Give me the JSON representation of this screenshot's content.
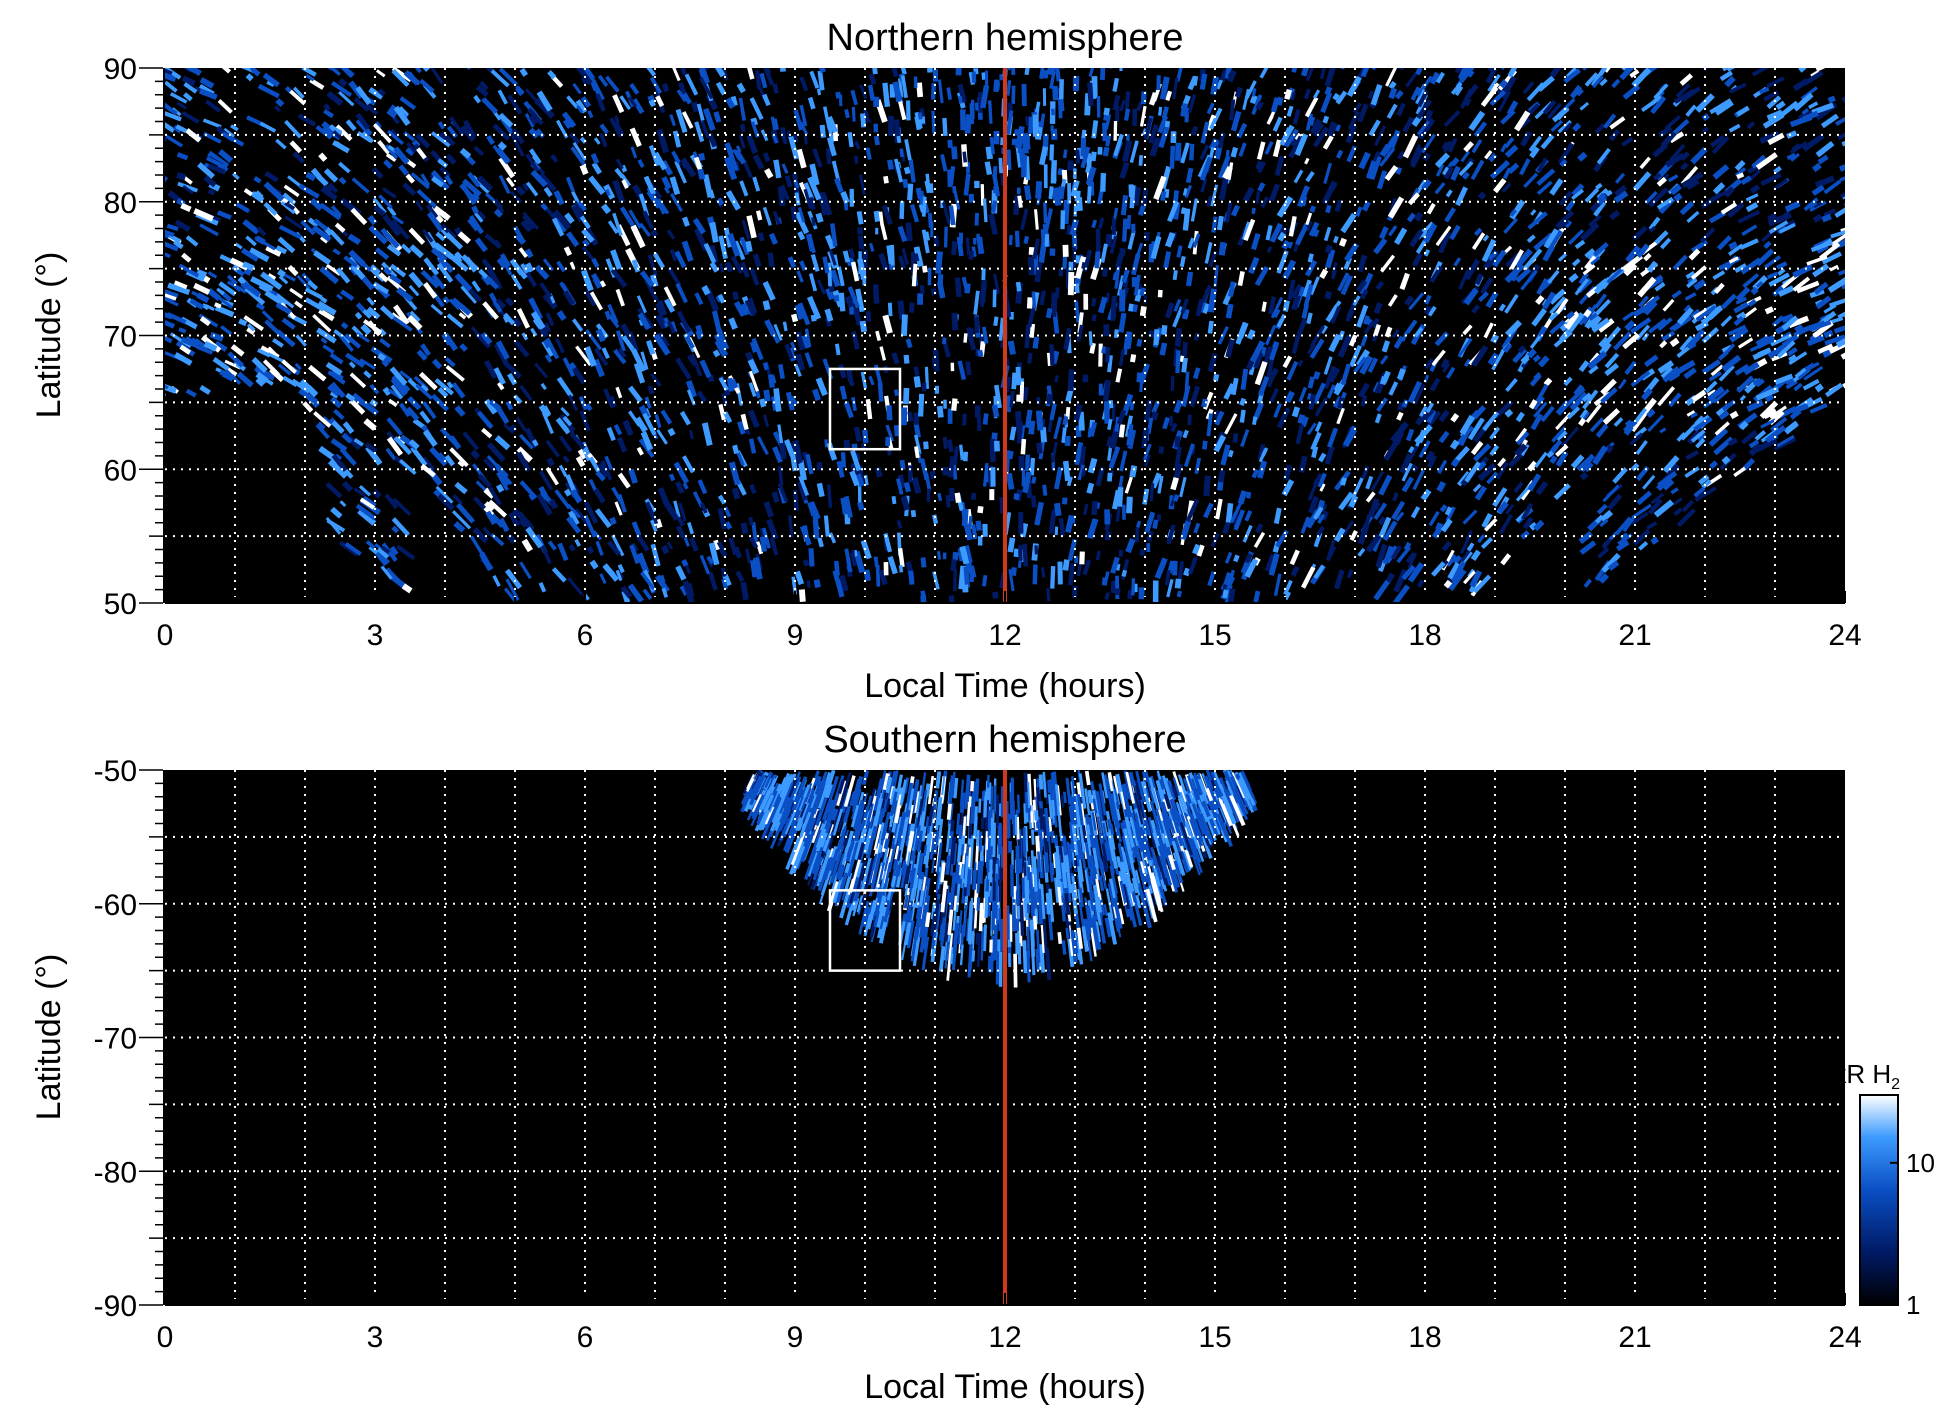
{
  "chart_data": [
    {
      "type": "heatmap",
      "title": "Northern hemisphere",
      "xlabel": "Local Time (hours)",
      "ylabel": "Latitude (°)",
      "xlim": [
        0,
        24
      ],
      "ylim": [
        50,
        90
      ],
      "x_ticks": [
        0,
        3,
        6,
        9,
        12,
        15,
        18,
        21,
        24
      ],
      "y_ticks": [
        50,
        60,
        70,
        80,
        90
      ],
      "x_tick_labels": [
        "0",
        "3",
        "6",
        "9",
        "12",
        "15",
        "18",
        "21",
        "24"
      ],
      "y_tick_labels": [
        "50",
        "60",
        "70",
        "80",
        "90"
      ],
      "grid": true,
      "grid_x_step": 1,
      "grid_y_step": 5,
      "background_color": "#000000",
      "colormap": [
        "#000000",
        "#001a66",
        "#0a4fc4",
        "#3d9bff",
        "#ffffff"
      ],
      "vertical_line": {
        "x": 12,
        "color": "#d0391c"
      },
      "box": {
        "x": [
          9.5,
          10.5
        ],
        "y": [
          61.5,
          67.5
        ],
        "color": "#ffffff"
      },
      "coverage": "emission-dominant at all local times near the pole; coverage lower boundary dips to 50° between ~3.5 and ~20 h; brightest auroral arcs near 0–4 h and 20–24 h at 65–75°"
    },
    {
      "type": "heatmap",
      "title": "Southern hemisphere",
      "xlabel": "Local Time (hours)",
      "ylabel": "Latitude (°)",
      "xlim": [
        0,
        24
      ],
      "ylim": [
        -90,
        -50
      ],
      "x_ticks": [
        0,
        3,
        6,
        9,
        12,
        15,
        18,
        21,
        24
      ],
      "y_ticks": [
        -90,
        -80,
        -70,
        -60,
        -50
      ],
      "x_tick_labels": [
        "0",
        "3",
        "6",
        "9",
        "12",
        "15",
        "18",
        "21",
        "24"
      ],
      "y_tick_labels": [
        "-90",
        "-80",
        "-70",
        "-60",
        "-50"
      ],
      "grid": true,
      "grid_x_step": 1,
      "grid_y_step": 5,
      "background_color": "#000000",
      "colormap": [
        "#000000",
        "#001a66",
        "#0a4fc4",
        "#3d9bff",
        "#ffffff"
      ],
      "vertical_line": {
        "x": 12,
        "color": "#d0391c"
      },
      "box": {
        "x": [
          9.5,
          10.5
        ],
        "y": [
          -65,
          -59
        ],
        "color": "#ffffff"
      },
      "coverage": "emission only in a cap between ~8.5 and ~15.3 h, from -50° down to about -64° at 12 h"
    }
  ],
  "colorbar": {
    "label": "kR H",
    "label_subscript": "2",
    "scale": "log",
    "range": [
      1,
      30
    ],
    "ticks": [
      1,
      10
    ],
    "tick_labels": [
      "1",
      "10"
    ],
    "colors": [
      "#000000",
      "#001a66",
      "#0a4fc4",
      "#3d9bff",
      "#ffffff"
    ]
  }
}
